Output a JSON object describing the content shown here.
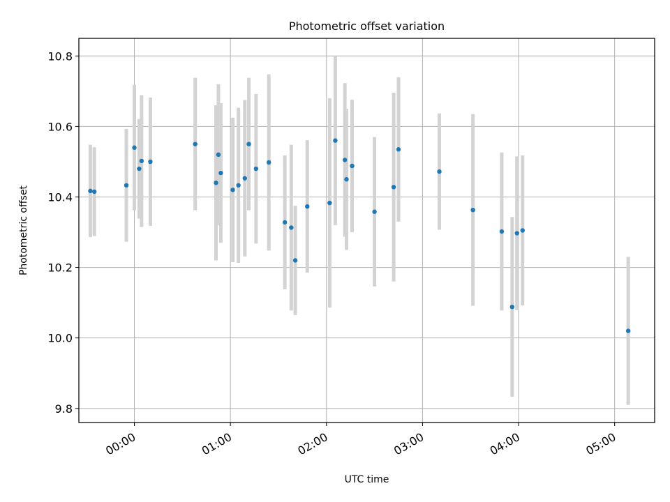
{
  "chart_data": {
    "type": "scatter",
    "title": "Photometric offset variation",
    "xlabel": "UTC time",
    "ylabel": "Photometric offset",
    "x_axis_type": "time",
    "xlim": [
      "2023-01-01T23:25:20",
      "2023-01-02T05:25:00"
    ],
    "ylim": [
      9.76,
      10.85
    ],
    "x_ticks": [
      "2023-01-02T00:00:00",
      "2023-01-02T01:00:00",
      "2023-01-02T02:00:00",
      "2023-01-02T03:00:00",
      "2023-01-02T04:00:00",
      "2023-01-02T05:00:00"
    ],
    "x_tick_labels": [
      "00:00",
      "01:00",
      "02:00",
      "03:00",
      "04:00",
      "05:00"
    ],
    "y_ticks": [
      9.8,
      10.0,
      10.2,
      10.4,
      10.6,
      10.8
    ],
    "y_tick_labels": [
      "9.8",
      "10.0",
      "10.2",
      "10.4",
      "10.6",
      "10.8"
    ],
    "grid": true,
    "colors": {
      "point": "#1f77b4",
      "errorbar": "#d3d3d3",
      "grid": "#b0b0b0"
    },
    "points": [
      {
        "x": "2023-01-01T23:32:30",
        "y": 10.417,
        "err": 0.131
      },
      {
        "x": "2023-01-01T23:35:00",
        "y": 10.415,
        "err": 0.126
      },
      {
        "x": "2023-01-01T23:55:00",
        "y": 10.433,
        "err": 0.16
      },
      {
        "x": "2023-01-02T00:00:00",
        "y": 10.54,
        "err": 0.178
      },
      {
        "x": "2023-01-02T00:03:00",
        "y": 10.48,
        "err": 0.141
      },
      {
        "x": "2023-01-02T00:04:30",
        "y": 10.502,
        "err": 0.187
      },
      {
        "x": "2023-01-02T00:10:00",
        "y": 10.5,
        "err": 0.182
      },
      {
        "x": "2023-01-02T00:38:00",
        "y": 10.55,
        "err": 0.188
      },
      {
        "x": "2023-01-02T00:51:00",
        "y": 10.44,
        "err": 0.22
      },
      {
        "x": "2023-01-02T00:52:30",
        "y": 10.52,
        "err": 0.2
      },
      {
        "x": "2023-01-02T00:54:00",
        "y": 10.468,
        "err": 0.198
      },
      {
        "x": "2023-01-02T01:01:30",
        "y": 10.42,
        "err": 0.205
      },
      {
        "x": "2023-01-02T01:05:00",
        "y": 10.433,
        "err": 0.22
      },
      {
        "x": "2023-01-02T01:09:00",
        "y": 10.453,
        "err": 0.222
      },
      {
        "x": "2023-01-02T01:11:30",
        "y": 10.55,
        "err": 0.188
      },
      {
        "x": "2023-01-02T01:16:00",
        "y": 10.48,
        "err": 0.212
      },
      {
        "x": "2023-01-02T01:24:00",
        "y": 10.498,
        "err": 0.25
      },
      {
        "x": "2023-01-02T01:34:00",
        "y": 10.328,
        "err": 0.19
      },
      {
        "x": "2023-01-02T01:38:00",
        "y": 10.313,
        "err": 0.235
      },
      {
        "x": "2023-01-02T01:40:30",
        "y": 10.22,
        "err": 0.155
      },
      {
        "x": "2023-01-02T01:48:00",
        "y": 10.373,
        "err": 0.188
      },
      {
        "x": "2023-01-02T02:02:00",
        "y": 10.383,
        "err": 0.297
      },
      {
        "x": "2023-01-02T02:05:30",
        "y": 10.56,
        "err": 0.24
      },
      {
        "x": "2023-01-02T02:11:30",
        "y": 10.505,
        "err": 0.218
      },
      {
        "x": "2023-01-02T02:12:30",
        "y": 10.45,
        "err": 0.2
      },
      {
        "x": "2023-01-02T02:16:00",
        "y": 10.488,
        "err": 0.188
      },
      {
        "x": "2023-01-02T02:30:00",
        "y": 10.358,
        "err": 0.212
      },
      {
        "x": "2023-01-02T02:42:00",
        "y": 10.428,
        "err": 0.268
      },
      {
        "x": "2023-01-02T02:45:00",
        "y": 10.535,
        "err": 0.205
      },
      {
        "x": "2023-01-02T03:10:30",
        "y": 10.472,
        "err": 0.165
      },
      {
        "x": "2023-01-02T03:31:30",
        "y": 10.363,
        "err": 0.272
      },
      {
        "x": "2023-01-02T03:49:30",
        "y": 10.302,
        "err": 0.224
      },
      {
        "x": "2023-01-02T03:56:00",
        "y": 10.088,
        "err": 0.255
      },
      {
        "x": "2023-01-02T03:59:00",
        "y": 10.297,
        "err": 0.218
      },
      {
        "x": "2023-01-02T04:02:30",
        "y": 10.305,
        "err": 0.213
      },
      {
        "x": "2023-01-02T05:08:30",
        "y": 10.02,
        "err": 0.21
      }
    ]
  }
}
